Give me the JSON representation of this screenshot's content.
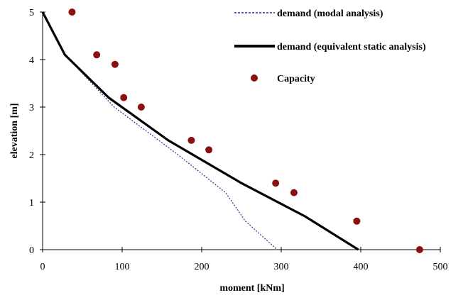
{
  "chart_data": {
    "type": "line",
    "xlabel": "moment [kNm]",
    "ylabel": "elevation [m]",
    "xlim": [
      0,
      500
    ],
    "ylim": [
      0,
      5
    ],
    "x_ticks": [
      "0",
      "100",
      "200",
      "300",
      "400",
      "500"
    ],
    "y_ticks": [
      "0",
      "1",
      "2",
      "3",
      "4",
      "5"
    ],
    "grid": false,
    "legend_position": "top-right",
    "series": [
      {
        "name": "demand (modal analysis)",
        "style": "dotted-line",
        "color": "#2b2b9a",
        "points": [
          [
            0,
            5.0
          ],
          [
            28,
            4.1
          ],
          [
            90,
            3.0
          ],
          [
            170,
            2.0
          ],
          [
            230,
            1.2
          ],
          [
            255,
            0.6
          ],
          [
            295,
            0.0
          ]
        ]
      },
      {
        "name": "demand (equivalent static analysis)",
        "style": "solid-line",
        "color": "#000000",
        "points": [
          [
            0,
            5.0
          ],
          [
            28,
            4.1
          ],
          [
            83,
            3.2
          ],
          [
            158,
            2.3
          ],
          [
            250,
            1.4
          ],
          [
            330,
            0.7
          ],
          [
            397,
            0.0
          ]
        ]
      },
      {
        "name": "Capacity",
        "style": "markers",
        "color": "#8b1010",
        "points": [
          [
            37,
            5.0
          ],
          [
            68,
            4.1
          ],
          [
            91,
            3.9
          ],
          [
            102,
            3.2
          ],
          [
            124,
            3.0
          ],
          [
            187,
            2.3
          ],
          [
            209,
            2.1
          ],
          [
            293,
            1.4
          ],
          [
            316,
            1.2
          ],
          [
            395,
            0.6
          ],
          [
            474,
            0.0
          ]
        ]
      }
    ]
  }
}
